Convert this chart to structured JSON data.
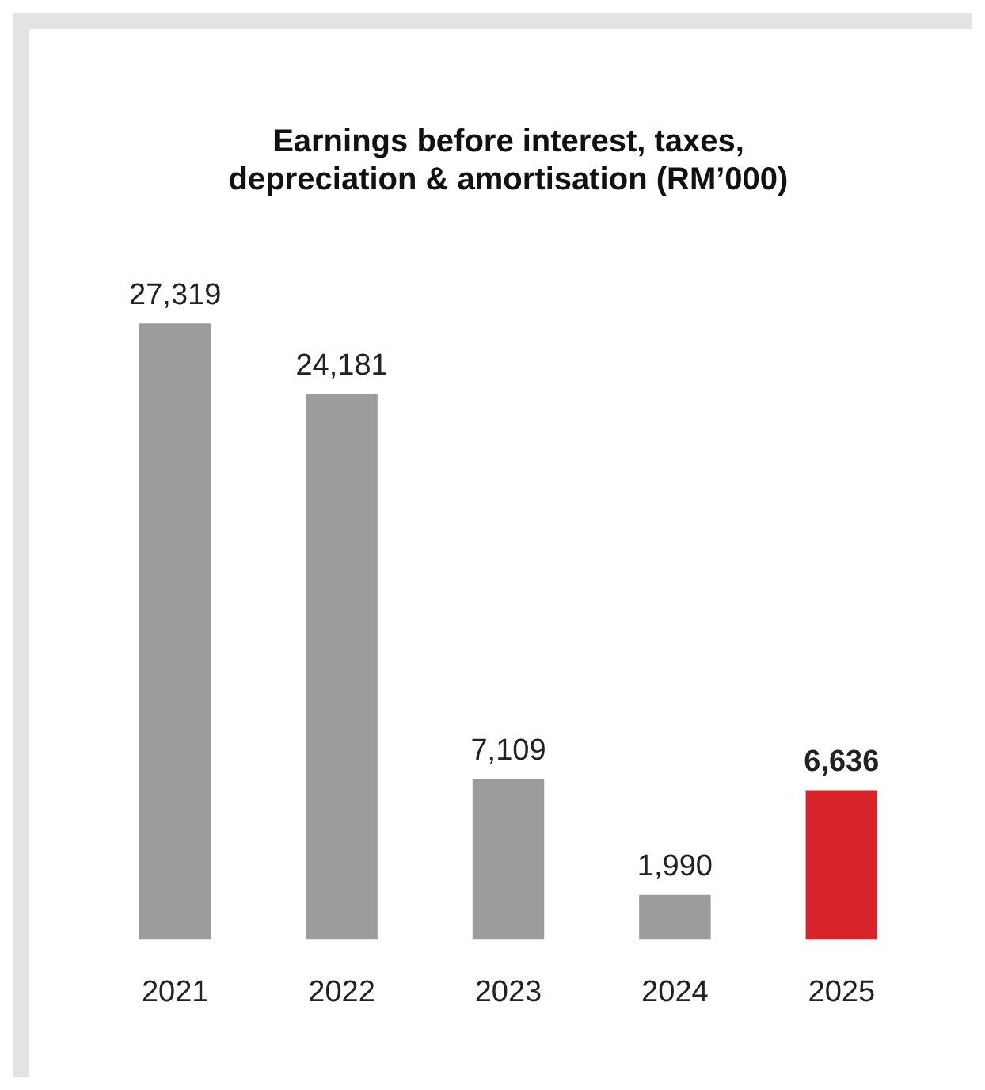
{
  "chart_data": {
    "type": "bar",
    "title": "Earnings before interest, taxes, depreciation & amortisation (RM’000)",
    "categories": [
      "2021",
      "2022",
      "2023",
      "2024",
      "2025"
    ],
    "values": [
      27319,
      24181,
      7109,
      1990,
      6636
    ],
    "colors": [
      "#9c9c9c",
      "#9c9c9c",
      "#9c9c9c",
      "#9c9c9c",
      "#d9232b"
    ],
    "value_labels": [
      "27,319",
      "24,181",
      "7,109",
      "1,990",
      "6,636"
    ],
    "grid": false,
    "legend": false
  }
}
